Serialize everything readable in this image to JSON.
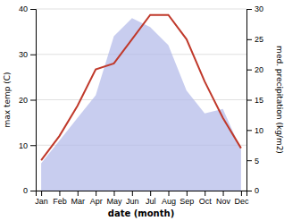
{
  "chart_data": {
    "type": "line",
    "categories": [
      "Jan",
      "Feb",
      "Mar",
      "Apr",
      "May",
      "Jun",
      "Jul",
      "Aug",
      "Sep",
      "Oct",
      "Nov",
      "Dec"
    ],
    "series": [
      {
        "type": "area",
        "color": "#b0b8e8",
        "values": [
          6,
          11,
          16,
          21,
          34,
          38,
          36,
          32,
          22,
          17,
          18,
          9
        ]
      },
      {
        "type": "line",
        "color": "#c0392b",
        "axis": "y2",
        "values": [
          5,
          9,
          14,
          20,
          21,
          25,
          29,
          29,
          25,
          18,
          12,
          7
        ]
      }
    ],
    "xlabel": "date (month)",
    "ylabel": "max temp (C)",
    "y2label": "med. precipitation (kg/m2)",
    "ylim": [
      0,
      40
    ],
    "yticks": [
      0,
      10,
      20,
      30,
      40
    ],
    "y2lim": [
      0,
      30
    ],
    "y2ticks": [
      0,
      5,
      10,
      15,
      20,
      25,
      30
    ],
    "grid": true
  }
}
